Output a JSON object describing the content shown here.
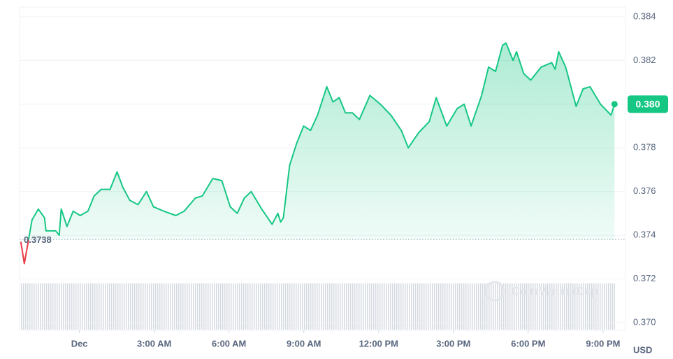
{
  "chart_data": {
    "type": "line",
    "x": [
      -2.35,
      -2.21,
      -2.07,
      -1.9,
      -1.65,
      -1.4,
      -1.34,
      -0.95,
      -0.81,
      -0.73,
      -0.5,
      -0.25,
      0.03,
      0.34,
      0.59,
      0.87,
      1.23,
      1.51,
      1.74,
      2.02,
      2.35,
      2.69,
      2.97,
      3.39,
      3.87,
      4.2,
      4.65,
      4.93,
      5.35,
      5.71,
      6.05,
      6.33,
      6.61,
      6.89,
      7.31,
      7.73,
      7.96,
      8.07,
      8.18,
      8.43,
      8.71,
      8.99,
      9.27,
      9.55,
      9.92,
      10.17,
      10.42,
      10.67,
      10.95,
      11.23,
      11.65,
      12.07,
      12.49,
      12.91,
      13.19,
      13.61,
      14.03,
      14.31,
      14.73,
      15.15,
      15.43,
      15.71,
      16.13,
      16.41,
      16.69,
      16.97,
      17.11,
      17.39,
      17.53,
      17.82,
      18.1,
      18.52,
      18.94,
      19.08,
      19.22,
      19.5,
      19.92,
      20.2,
      20.48,
      20.9,
      21.32,
      21.46
    ],
    "series": [
      {
        "color": "#16c784",
        "down_color": "#ea3943",
        "values": [
          0.3737,
          0.3727,
          0.3736,
          0.3747,
          0.3752,
          0.3748,
          0.3742,
          0.3742,
          0.374,
          0.3752,
          0.3744,
          0.3751,
          0.3749,
          0.3751,
          0.3758,
          0.3761,
          0.3761,
          0.3769,
          0.3762,
          0.3756,
          0.3754,
          0.376,
          0.3753,
          0.3751,
          0.3749,
          0.3751,
          0.3757,
          0.3758,
          0.3766,
          0.3765,
          0.3753,
          0.375,
          0.3757,
          0.376,
          0.3752,
          0.3745,
          0.375,
          0.3746,
          0.3748,
          0.3772,
          0.3782,
          0.379,
          0.3788,
          0.3795,
          0.3808,
          0.3801,
          0.3803,
          0.3796,
          0.3796,
          0.3793,
          0.3804,
          0.38,
          0.3795,
          0.3788,
          0.378,
          0.3787,
          0.3792,
          0.3803,
          0.379,
          0.3798,
          0.38,
          0.379,
          0.3804,
          0.3817,
          0.3815,
          0.3827,
          0.3828,
          0.382,
          0.3824,
          0.3814,
          0.3811,
          0.3817,
          0.3819,
          0.3816,
          0.3824,
          0.3817,
          0.3799,
          0.3807,
          0.3808,
          0.38,
          0.3795,
          0.38
        ]
      }
    ],
    "baseline": 0.3738,
    "last_price": {
      "value": 0.38,
      "label": "0.380"
    },
    "currency": "USD",
    "watermark": "CoinMarketCap",
    "xlim": [
      -2.4,
      21.9
    ],
    "xticks": [
      {
        "value": 0,
        "label": "Dec"
      },
      {
        "value": 3,
        "label": "3:00 AM"
      },
      {
        "value": 6,
        "label": "6:00 AM"
      },
      {
        "value": 9,
        "label": "9:00 AM"
      },
      {
        "value": 12,
        "label": "12:00 PM"
      },
      {
        "value": 15,
        "label": "3:00 PM"
      },
      {
        "value": 18,
        "label": "6:00 PM"
      },
      {
        "value": 21,
        "label": "9:00 PM"
      }
    ],
    "ylim": [
      0.37,
      0.384
    ],
    "yticks": [
      {
        "value": 0.37,
        "label": "0.370"
      },
      0.372,
      0.374,
      0.376,
      0.378,
      {
        "value": 0.38,
        "label": "0.380"
      },
      0.382,
      0.384
    ],
    "grid": true
  }
}
